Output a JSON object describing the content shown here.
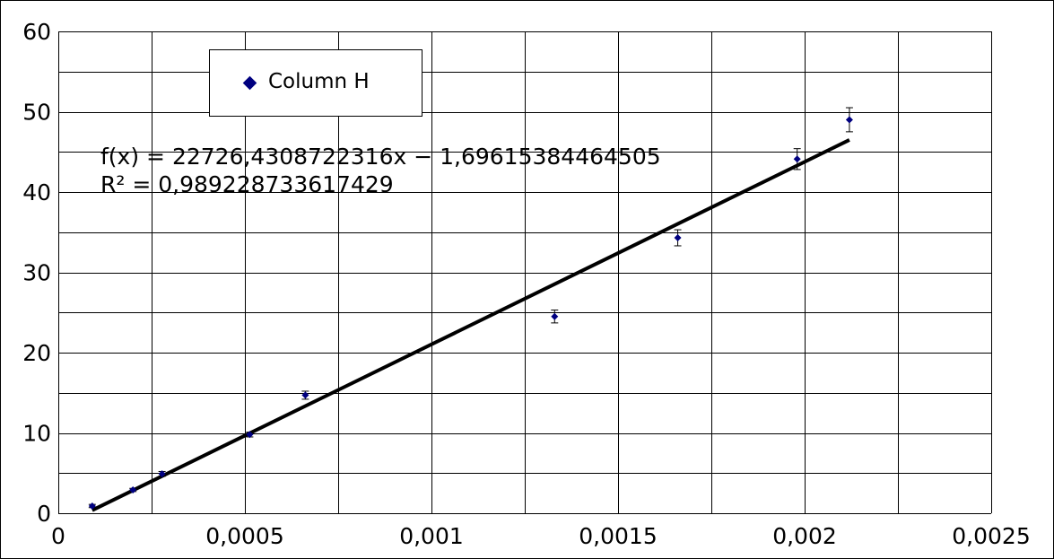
{
  "chart_data": {
    "type": "scatter",
    "title": "",
    "xlabel": "",
    "ylabel": "",
    "xlim": [
      0,
      0.0025
    ],
    "ylim": [
      0,
      60
    ],
    "x_ticks": [
      0,
      0.0005,
      0.001,
      0.0015,
      0.002,
      0.0025
    ],
    "x_tick_labels": [
      "0",
      "0,0005",
      "0,001",
      "0,0015",
      "0,002",
      "0,0025"
    ],
    "y_ticks": [
      0,
      10,
      20,
      30,
      40,
      50,
      60
    ],
    "y_tick_labels": [
      "0",
      "10",
      "20",
      "30",
      "40",
      "50",
      "60"
    ],
    "grid": true,
    "legend_position": "top-left",
    "series": [
      {
        "name": "Column H",
        "color": "#000080",
        "marker": "diamond",
        "x": [
          9.09e-05,
          0.0002,
          0.000278,
          0.000513,
          0.000662,
          0.00133,
          0.00166,
          0.00198,
          0.00212
        ],
        "y": [
          0.9,
          2.9,
          4.9,
          9.8,
          14.7,
          24.5,
          34.3,
          44.1,
          49.0
        ],
        "y_err": [
          0.2,
          0.2,
          0.3,
          0.3,
          0.5,
          0.8,
          1.0,
          1.3,
          1.5
        ]
      }
    ],
    "trendline": {
      "type": "linear",
      "slope": 22726.4308722316,
      "intercept": -1.69615384464505,
      "x_range": [
        9.09e-05,
        0.00212
      ],
      "color": "#000000"
    },
    "annotations": [
      "f(x) = 22726,4308722316x − 1,69615384464505",
      "R² = 0,989228733617429"
    ]
  }
}
